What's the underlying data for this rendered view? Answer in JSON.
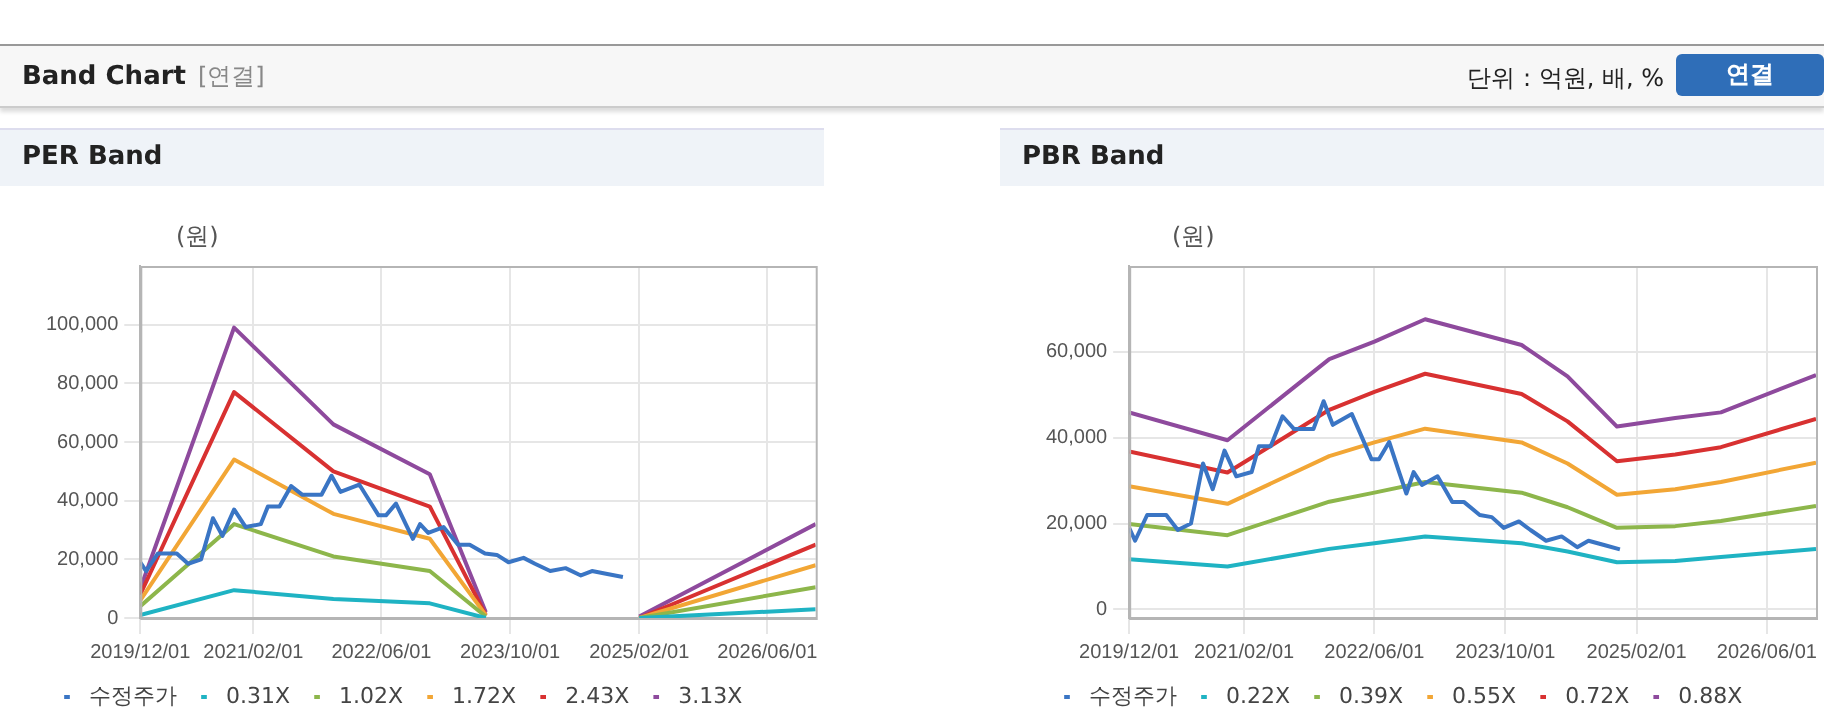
{
  "chart_data": [
    {
      "type": "line",
      "title": "PER Band",
      "ylabel": "(원)",
      "xlim": [
        "2019-12-01",
        "2026-12-01"
      ],
      "xticks": [
        {
          "value": "2019-12-01",
          "label": "2019/12/01"
        },
        {
          "value": "2021-02-01",
          "label": "2021/02/01"
        },
        {
          "value": "2022-06-01",
          "label": "2022/06/01"
        },
        {
          "value": "2023-10-01",
          "label": "2023/10/01"
        },
        {
          "value": "2025-02-01",
          "label": "2025/02/01"
        },
        {
          "value": "2026-06-01",
          "label": "2026/06/01"
        }
      ],
      "ylim": [
        0,
        120000
      ],
      "yticks": [
        0,
        {
          "value": 20000,
          "label": "20,000"
        },
        {
          "value": 40000,
          "label": "40,000"
        },
        {
          "value": 60000,
          "label": "60,000"
        },
        {
          "value": 80000,
          "label": "80,000"
        },
        {
          "value": 100000,
          "label": "100,000"
        }
      ],
      "grid": true,
      "legend": "bottom",
      "marker": "none",
      "line_style": "solid",
      "x": [
        "2019-12-01",
        "2020-11-20",
        "2021-12-01",
        "2022-12-01",
        "2023-07-01",
        "2024-06-01",
        "2025-02-01",
        "2026-12-01"
      ],
      "series": [
        {
          "name": "수정주가",
          "color": "#3a75c4",
          "x": [
            "2019-12-01",
            "2019-12-23",
            "2020-02-06",
            "2020-04-17",
            "2020-05-30",
            "2020-07-18",
            "2020-09-01",
            "2020-10-07",
            "2020-11-20",
            "2021-01-03",
            "2021-03-01",
            "2021-03-28",
            "2021-05-11",
            "2021-06-24",
            "2021-08-06",
            "2021-10-17",
            "2021-11-24",
            "2021-12-28",
            "2022-03-09",
            "2022-05-21",
            "2022-06-18",
            "2022-07-26",
            "2022-09-01",
            "2022-09-28",
            "2022-10-25",
            "2022-11-25",
            "2023-01-22",
            "2023-03-18",
            "2023-05-01",
            "2023-06-28",
            "2023-08-12",
            "2023-09-25",
            "2023-11-21",
            "2024-01-03",
            "2024-03-01",
            "2024-04-28",
            "2024-06-25",
            "2024-08-06",
            "2024-10-03",
            "2024-12-01"
          ],
          "values": [
            19000,
            16000,
            22000,
            22000,
            18500,
            20000,
            34000,
            28000,
            37000,
            31000,
            32000,
            38000,
            38000,
            45000,
            42000,
            42000,
            48500,
            43000,
            45500,
            35000,
            35000,
            39000,
            32000,
            27000,
            32000,
            29000,
            31000,
            25000,
            25000,
            22000,
            21500,
            19000,
            20500,
            18500,
            16000,
            17000,
            14500,
            16000,
            15000,
            14000
          ]
        },
        {
          "name": "0.31X",
          "color": "#1fb3c3",
          "values": [
            1000,
            9500,
            6500,
            5000,
            0,
            null,
            0,
            3000
          ]
        },
        {
          "name": "1.02X",
          "color": "#8db64b",
          "values": [
            4000,
            32000,
            21000,
            16000,
            500,
            null,
            0,
            10500
          ]
        },
        {
          "name": "1.72X",
          "color": "#f2a635",
          "values": [
            6000,
            54000,
            35500,
            27000,
            1000,
            null,
            0,
            18000
          ]
        },
        {
          "name": "2.43X",
          "color": "#d83131",
          "values": [
            8000,
            77000,
            50000,
            38000,
            1000,
            null,
            0,
            25000
          ]
        },
        {
          "name": "3.13X",
          "color": "#8e4a9d",
          "values": [
            10000,
            99000,
            66000,
            49000,
            2000,
            null,
            500,
            32000
          ]
        }
      ]
    },
    {
      "type": "line",
      "title": "PBR Band",
      "ylabel": "(원)",
      "xlim": [
        "2019-12-01",
        "2026-12-01"
      ],
      "xticks": [
        {
          "value": "2019-12-01",
          "label": "2019/12/01"
        },
        {
          "value": "2021-02-01",
          "label": "2021/02/01"
        },
        {
          "value": "2022-06-01",
          "label": "2022/06/01"
        },
        {
          "value": "2023-10-01",
          "label": "2023/10/01"
        },
        {
          "value": "2025-02-01",
          "label": "2025/02/01"
        },
        {
          "value": "2026-06-01",
          "label": "2026/06/01"
        }
      ],
      "ylim": [
        -2000,
        80000
      ],
      "yticks": [
        0,
        {
          "value": 20000,
          "label": "20,000"
        },
        {
          "value": 40000,
          "label": "40,000"
        },
        {
          "value": 60000,
          "label": "60,000"
        }
      ],
      "grid": true,
      "legend": "bottom",
      "marker": "none",
      "line_style": "solid",
      "x": [
        "2019-12-01",
        "2020-12-01",
        "2021-12-15",
        "2022-06-01",
        "2022-12-07",
        "2023-12-01",
        "2024-05-20",
        "2024-11-20",
        "2025-06-25",
        "2025-12-12",
        "2026-12-01"
      ],
      "series": [
        {
          "name": "수정주가",
          "color": "#3a75c4",
          "x": [
            "2019-12-01",
            "2019-12-23",
            "2020-02-06",
            "2020-04-17",
            "2020-05-30",
            "2020-07-18",
            "2020-09-01",
            "2020-10-07",
            "2020-11-20",
            "2021-01-03",
            "2021-03-01",
            "2021-03-28",
            "2021-05-11",
            "2021-06-24",
            "2021-08-06",
            "2021-10-17",
            "2021-11-24",
            "2021-12-28",
            "2022-03-09",
            "2022-05-21",
            "2022-06-18",
            "2022-07-26",
            "2022-09-01",
            "2022-09-28",
            "2022-10-25",
            "2022-11-25",
            "2023-01-22",
            "2023-03-18",
            "2023-05-01",
            "2023-06-28",
            "2023-08-12",
            "2023-09-25",
            "2023-11-21",
            "2024-01-03",
            "2024-03-01",
            "2024-04-28",
            "2024-06-25",
            "2024-08-06",
            "2024-10-03",
            "2024-12-01"
          ],
          "values": [
            19000,
            16000,
            22000,
            22000,
            18500,
            20000,
            34000,
            28000,
            37000,
            31000,
            32000,
            38000,
            38000,
            45000,
            42000,
            42000,
            48500,
            43000,
            45500,
            35000,
            35000,
            39000,
            32000,
            27000,
            32000,
            29000,
            31000,
            25000,
            25000,
            22000,
            21500,
            19000,
            20500,
            18500,
            16000,
            17000,
            14500,
            16000,
            15000,
            14000
          ]
        },
        {
          "name": "0.22X",
          "color": "#1fb3c3",
          "values": [
            11700,
            10000,
            14100,
            15400,
            17000,
            15400,
            13500,
            11000,
            11300,
            12200,
            14100
          ]
        },
        {
          "name": "0.39X",
          "color": "#8db64b",
          "values": [
            19900,
            17300,
            25100,
            27200,
            29700,
            27200,
            23800,
            19000,
            19400,
            20600,
            24100
          ]
        },
        {
          "name": "0.55X",
          "color": "#f2a635",
          "values": [
            28700,
            24600,
            35700,
            38900,
            42100,
            38900,
            34000,
            26700,
            28000,
            29700,
            34200
          ]
        },
        {
          "name": "0.72X",
          "color": "#d83131",
          "values": [
            36800,
            31900,
            46500,
            50700,
            54900,
            50200,
            43800,
            34500,
            36100,
            37800,
            44400
          ]
        },
        {
          "name": "0.88X",
          "color": "#8e4a9d",
          "values": [
            45900,
            39400,
            58300,
            62400,
            67600,
            61600,
            54300,
            42600,
            44600,
            45900,
            54600
          ]
        }
      ]
    },
    {
      "type": "other",
      "title": "Band Chart",
      "subtitle": "[연결]",
      "annotations": [
        "단위 : 억원, 배, %",
        "연결"
      ]
    }
  ]
}
